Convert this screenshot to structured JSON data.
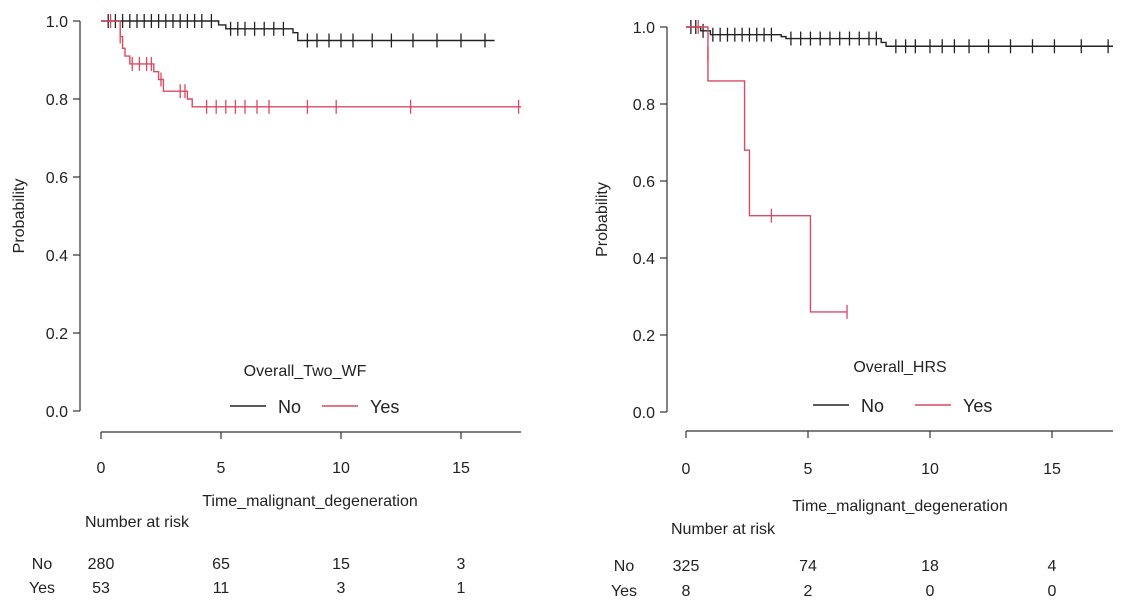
{
  "colors": {
    "no": "#222222",
    "yes": "#d94a63",
    "axis": "#333333"
  },
  "risk_table_title": "Number at risk",
  "chart_data": [
    {
      "type": "line",
      "subtype": "kaplan-meier",
      "ylabel": "Probability",
      "xlabel": "Time_malignant_degeneration",
      "xlim": [
        0,
        17.5
      ],
      "ylim": [
        0,
        1
      ],
      "xticks": [
        "0",
        "5",
        "10",
        "15"
      ],
      "yticks": [
        "0.0",
        "0.2",
        "0.4",
        "0.6",
        "0.8",
        "1.0"
      ],
      "legend_title": "Overall_Two_WF",
      "legend_placement": "bottom-center",
      "series": [
        {
          "name": "No",
          "steps": [
            [
              0,
              1.0
            ],
            [
              4.9,
              0.99
            ],
            [
              5.2,
              0.98
            ],
            [
              8.0,
              0.97
            ],
            [
              8.2,
              0.95
            ],
            [
              16.4,
              0.95
            ]
          ],
          "censored": [
            [
              0.3,
              1.0
            ],
            [
              0.6,
              1.0
            ],
            [
              0.9,
              1.0
            ],
            [
              1.2,
              1.0
            ],
            [
              1.5,
              1.0
            ],
            [
              1.8,
              1.0
            ],
            [
              2.1,
              1.0
            ],
            [
              2.4,
              1.0
            ],
            [
              2.7,
              1.0
            ],
            [
              3.0,
              1.0
            ],
            [
              3.3,
              1.0
            ],
            [
              3.6,
              1.0
            ],
            [
              3.9,
              1.0
            ],
            [
              4.2,
              1.0
            ],
            [
              4.6,
              1.0
            ],
            [
              5.4,
              0.98
            ],
            [
              5.7,
              0.98
            ],
            [
              6.0,
              0.98
            ],
            [
              6.4,
              0.98
            ],
            [
              6.8,
              0.98
            ],
            [
              7.2,
              0.98
            ],
            [
              7.6,
              0.98
            ],
            [
              8.6,
              0.95
            ],
            [
              9.0,
              0.95
            ],
            [
              9.5,
              0.95
            ],
            [
              10.0,
              0.95
            ],
            [
              10.5,
              0.95
            ],
            [
              11.3,
              0.95
            ],
            [
              12.1,
              0.95
            ],
            [
              13.0,
              0.95
            ],
            [
              14.0,
              0.95
            ],
            [
              15.0,
              0.95
            ],
            [
              16.0,
              0.95
            ]
          ]
        },
        {
          "name": "Yes",
          "steps": [
            [
              0,
              1.0
            ],
            [
              0.8,
              0.96
            ],
            [
              0.9,
              0.93
            ],
            [
              1.0,
              0.91
            ],
            [
              1.2,
              0.89
            ],
            [
              2.2,
              0.87
            ],
            [
              2.4,
              0.85
            ],
            [
              2.6,
              0.82
            ],
            [
              3.6,
              0.8
            ],
            [
              3.8,
              0.78
            ],
            [
              17.5,
              0.78
            ]
          ],
          "censored": [
            [
              0.4,
              1.0
            ],
            [
              0.8,
              0.96
            ],
            [
              1.3,
              0.89
            ],
            [
              1.6,
              0.89
            ],
            [
              1.9,
              0.89
            ],
            [
              2.1,
              0.89
            ],
            [
              2.5,
              0.85
            ],
            [
              3.3,
              0.82
            ],
            [
              3.5,
              0.82
            ],
            [
              4.4,
              0.78
            ],
            [
              4.8,
              0.78
            ],
            [
              5.2,
              0.78
            ],
            [
              5.6,
              0.78
            ],
            [
              6.0,
              0.78
            ],
            [
              6.5,
              0.78
            ],
            [
              7.0,
              0.78
            ],
            [
              8.6,
              0.78
            ],
            [
              9.8,
              0.78
            ],
            [
              12.9,
              0.78
            ],
            [
              17.4,
              0.78
            ]
          ]
        }
      ],
      "risk_table": {
        "times": [
          0,
          5,
          10,
          15
        ],
        "rows": [
          {
            "label": "No",
            "values": [
              "280",
              "65",
              "15",
              "3"
            ]
          },
          {
            "label": "Yes",
            "values": [
              "53",
              "11",
              "3",
              "1"
            ]
          }
        ]
      }
    },
    {
      "type": "line",
      "subtype": "kaplan-meier",
      "ylabel": "Probability",
      "xlabel": "Time_malignant_degeneration",
      "xlim": [
        0,
        17.5
      ],
      "ylim": [
        0,
        1
      ],
      "xticks": [
        "0",
        "5",
        "10",
        "15"
      ],
      "yticks": [
        "0.0",
        "0.2",
        "0.4",
        "0.6",
        "0.8",
        "1.0"
      ],
      "legend_title": "Overall_HRS",
      "legend_placement": "bottom-center",
      "series": [
        {
          "name": "No",
          "steps": [
            [
              0,
              1.0
            ],
            [
              0.6,
              0.99
            ],
            [
              1.0,
              0.98
            ],
            [
              3.9,
              0.975
            ],
            [
              4.1,
              0.97
            ],
            [
              8.0,
              0.96
            ],
            [
              8.2,
              0.95
            ],
            [
              17.5,
              0.95
            ]
          ],
          "censored": [
            [
              0.2,
              1.0
            ],
            [
              0.4,
              1.0
            ],
            [
              0.7,
              0.99
            ],
            [
              1.1,
              0.98
            ],
            [
              1.4,
              0.98
            ],
            [
              1.7,
              0.98
            ],
            [
              2.0,
              0.98
            ],
            [
              2.3,
              0.98
            ],
            [
              2.6,
              0.98
            ],
            [
              2.9,
              0.98
            ],
            [
              3.2,
              0.98
            ],
            [
              3.5,
              0.98
            ],
            [
              4.3,
              0.97
            ],
            [
              4.7,
              0.97
            ],
            [
              5.1,
              0.97
            ],
            [
              5.5,
              0.97
            ],
            [
              5.9,
              0.97
            ],
            [
              6.3,
              0.97
            ],
            [
              6.7,
              0.97
            ],
            [
              7.1,
              0.97
            ],
            [
              7.5,
              0.97
            ],
            [
              7.8,
              0.97
            ],
            [
              8.6,
              0.95
            ],
            [
              9.0,
              0.95
            ],
            [
              9.4,
              0.95
            ],
            [
              10.0,
              0.95
            ],
            [
              10.5,
              0.95
            ],
            [
              11.0,
              0.95
            ],
            [
              11.6,
              0.95
            ],
            [
              12.4,
              0.95
            ],
            [
              13.3,
              0.95
            ],
            [
              14.2,
              0.95
            ],
            [
              15.1,
              0.95
            ],
            [
              16.2,
              0.95
            ],
            [
              17.3,
              0.95
            ]
          ]
        },
        {
          "name": "Yes",
          "steps": [
            [
              0,
              1.0
            ],
            [
              0.9,
              0.86
            ],
            [
              2.4,
              0.68
            ],
            [
              2.6,
              0.51
            ],
            [
              5.1,
              0.26
            ],
            [
              6.6,
              0.26
            ]
          ],
          "censored": [
            [
              0.5,
              1.0
            ],
            [
              0.9,
              0.93
            ],
            [
              3.5,
              0.51
            ],
            [
              6.6,
              0.26
            ]
          ]
        }
      ],
      "risk_table": {
        "times": [
          0,
          5,
          10,
          15
        ],
        "rows": [
          {
            "label": "No",
            "values": [
              "325",
              "74",
              "18",
              "4"
            ]
          },
          {
            "label": "Yes",
            "values": [
              "8",
              "2",
              "0",
              "0"
            ]
          }
        ]
      }
    }
  ]
}
